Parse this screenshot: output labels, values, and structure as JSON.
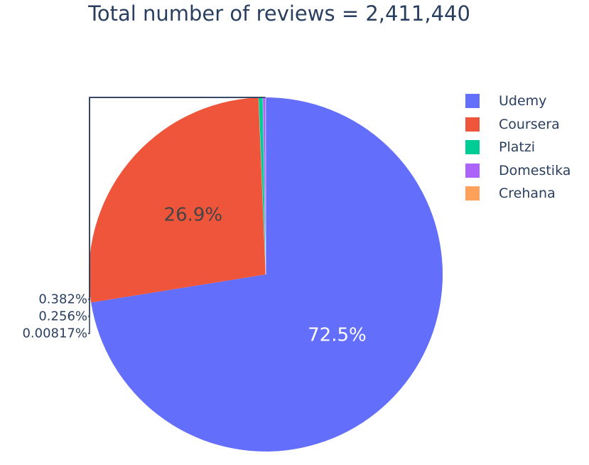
{
  "chart_data": {
    "type": "pie",
    "title": "Total number of reviews = 2,411,440",
    "labels": [
      "Udemy",
      "Coursera",
      "Platzi",
      "Domestika",
      "Crehana"
    ],
    "values": [
      72.5,
      26.9,
      0.382,
      0.256,
      0.00817
    ],
    "text_labels": [
      "72.5%",
      "26.9%",
      "0.382%",
      "0.256%",
      "0.00817%"
    ],
    "colors": [
      "#636efa",
      "#ef553b",
      "#00cc96",
      "#ab63fa",
      "#ffa15a"
    ],
    "direction": "clockwise",
    "start": "top",
    "legend_position": "right",
    "small_slice_labels": "outside-left"
  }
}
